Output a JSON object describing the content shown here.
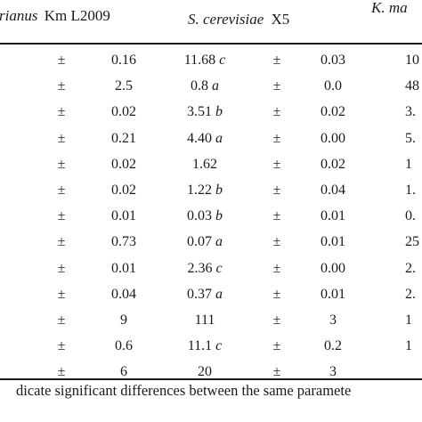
{
  "header": {
    "col1_species": "rianus",
    "col1_strain": "Km L2009",
    "col2_species": "S. cerevisiae",
    "col2_strain": "X5",
    "col3_species": "K. ma"
  },
  "rows": [
    {
      "sign1": "±",
      "sd1": "0.16",
      "val2": "11.68",
      "let2": "c",
      "sign2": "±",
      "sd2": "0.03",
      "val3": "10"
    },
    {
      "sign1": "±",
      "sd1": "2.5",
      "val2": "0.8",
      "let2": "a",
      "sign2": "±",
      "sd2": "0.0",
      "val3": "48"
    },
    {
      "sign1": "±",
      "sd1": "0.02",
      "val2": "3.51",
      "let2": "b",
      "sign2": "±",
      "sd2": "0.02",
      "val3": "3."
    },
    {
      "sign1": "±",
      "sd1": "0.21",
      "val2": "4.40",
      "let2": "a",
      "sign2": "±",
      "sd2": "0.00",
      "val3": "5."
    },
    {
      "sign1": "±",
      "sd1": "0.02",
      "val2": "1.62",
      "let2": "",
      "sign2": "±",
      "sd2": "0.02",
      "val3": "1"
    },
    {
      "sign1": "±",
      "sd1": "0.02",
      "val2": "1.22",
      "let2": "b",
      "sign2": "±",
      "sd2": "0.04",
      "val3": "1."
    },
    {
      "sign1": "±",
      "sd1": "0.01",
      "val2": "0.03",
      "let2": "b",
      "sign2": "±",
      "sd2": "0.01",
      "val3": "0."
    },
    {
      "sign1": "±",
      "sd1": "0.73",
      "val2": "0.07",
      "let2": "a",
      "sign2": "±",
      "sd2": "0.01",
      "val3": "25"
    },
    {
      "sign1": "±",
      "sd1": "0.01",
      "val2": "2.36",
      "let2": "c",
      "sign2": "±",
      "sd2": "0.00",
      "val3": "2."
    },
    {
      "sign1": "±",
      "sd1": "0.04",
      "val2": "0.37",
      "let2": "a",
      "sign2": "±",
      "sd2": "0.01",
      "val3": "2."
    },
    {
      "sign1": "±",
      "sd1": "9",
      "val2": "111",
      "let2": "",
      "sign2": "±",
      "sd2": "3",
      "val3": "1"
    },
    {
      "sign1": "±",
      "sd1": "0.6",
      "val2": "11.1",
      "let2": "c",
      "sign2": "±",
      "sd2": "0.2",
      "val3": "1"
    },
    {
      "sign1": "±",
      "sd1": "6",
      "val2": "20",
      "let2": "",
      "sign2": "±",
      "sd2": "3",
      "val3": ""
    }
  ],
  "left_fragment": ",",
  "footnote": "dicate significant differences between the same paramete"
}
